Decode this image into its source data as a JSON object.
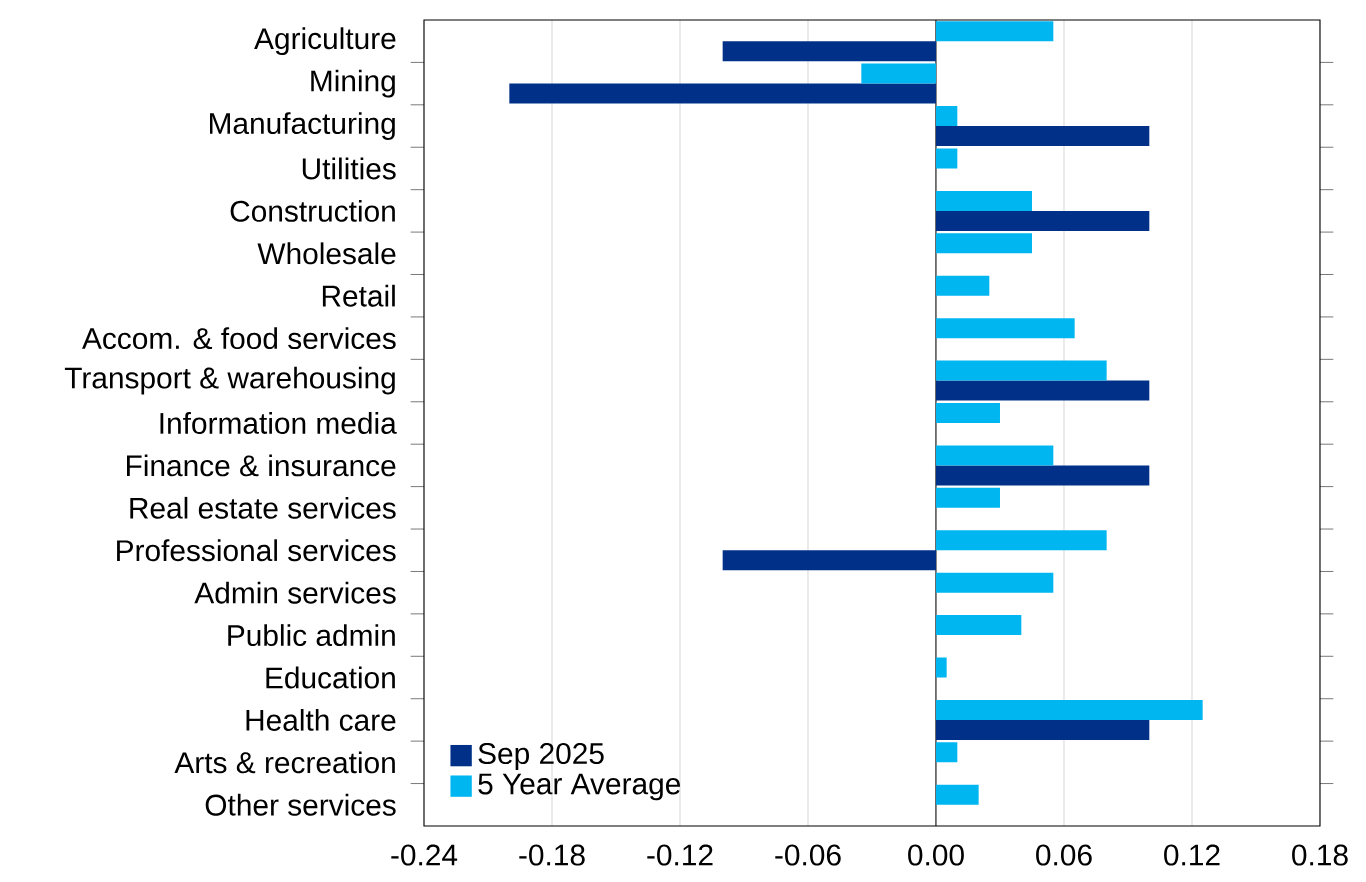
{
  "chart_data": {
    "type": "bar",
    "orientation": "horizontal",
    "categories": [
      "Agriculture",
      "Mining",
      "Manufacturing",
      "Utilities",
      "Construction",
      "Wholesale",
      "Retail",
      "Accom. & food services",
      "Transport & warehousing",
      "Information media",
      "Finance & insurance",
      "Real estate services",
      "Professional services",
      "Admin services",
      "Public admin",
      "Education",
      "Health care",
      "Arts & recreation",
      "Other services"
    ],
    "series": [
      {
        "name": "Sep 2025",
        "color": "#003087",
        "values": [
          -0.1,
          -0.2,
          0.1,
          0,
          0.1,
          0,
          0,
          0,
          0.1,
          0,
          0.1,
          0,
          -0.1,
          0,
          0,
          0,
          0.1,
          0,
          0
        ]
      },
      {
        "name": "5 Year Average",
        "color": "#00b6f0",
        "values": [
          0.055,
          -0.035,
          0.01,
          0.01,
          0.045,
          0.045,
          0.025,
          0.065,
          0.08,
          0.03,
          0.055,
          0.03,
          0.08,
          0.055,
          0.04,
          0.005,
          0.125,
          0.01,
          0.02
        ]
      }
    ],
    "xlim": [
      -0.24,
      0.18
    ],
    "xticks": [
      {
        "value": -0.24,
        "label": "-0.24"
      },
      {
        "value": -0.18,
        "label": "-0.18"
      },
      {
        "value": -0.12,
        "label": "-0.12"
      },
      {
        "value": -0.06,
        "label": "-0.06"
      },
      {
        "value": 0,
        "label": "0.00"
      },
      {
        "value": 0.06,
        "label": "0.06"
      },
      {
        "value": 0.12,
        "label": "0.12"
      },
      {
        "value": 0.18,
        "label": "0.18"
      }
    ],
    "grid": "x",
    "legend": "bottom left"
  }
}
